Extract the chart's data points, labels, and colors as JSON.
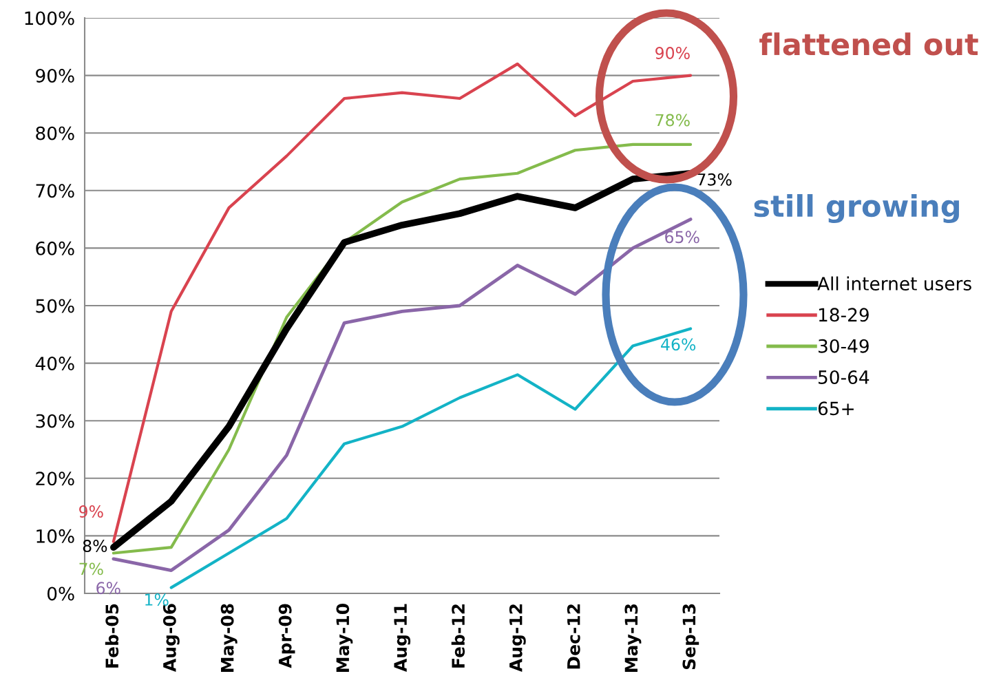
{
  "chart_data": {
    "type": "line",
    "categories": [
      "Feb-05",
      "Aug-06",
      "May-08",
      "Apr-09",
      "May-10",
      "Aug-11",
      "Feb-12",
      "Aug-12",
      "Dec-12",
      "May-13",
      "Sep-13"
    ],
    "series": [
      {
        "name": "All internet users",
        "color": "#000000",
        "values": [
          8,
          16,
          29,
          46,
          61,
          64,
          66,
          69,
          67,
          72,
          73
        ],
        "value_labels": [
          "8%",
          null,
          null,
          null,
          null,
          null,
          null,
          null,
          null,
          null,
          "73%"
        ]
      },
      {
        "name": "18-29",
        "color": "#d9434f",
        "values": [
          9,
          49,
          67,
          76,
          86,
          87,
          86,
          92,
          83,
          89,
          90
        ],
        "value_labels": [
          "9%",
          null,
          null,
          null,
          null,
          null,
          null,
          null,
          null,
          null,
          "90%"
        ]
      },
      {
        "name": "30-49",
        "color": "#84bb4c",
        "values": [
          7,
          8,
          25,
          48,
          61,
          68,
          72,
          73,
          77,
          78,
          78
        ],
        "value_labels": [
          "7%",
          null,
          null,
          null,
          null,
          null,
          null,
          null,
          null,
          null,
          "78%"
        ]
      },
      {
        "name": "50-64",
        "color": "#8a66a8",
        "values": [
          6,
          4,
          11,
          24,
          47,
          49,
          50,
          57,
          52,
          60,
          65
        ],
        "value_labels": [
          "6%",
          null,
          null,
          null,
          null,
          null,
          null,
          null,
          null,
          null,
          "65%"
        ]
      },
      {
        "name": "65+",
        "color": "#13b3c6",
        "values": [
          null,
          1,
          7,
          13,
          26,
          29,
          34,
          38,
          32,
          43,
          46
        ],
        "value_labels": [
          null,
          "1%",
          null,
          null,
          null,
          null,
          null,
          null,
          null,
          null,
          "46%"
        ]
      }
    ],
    "ylim": [
      0,
      100
    ],
    "yticks": [
      {
        "value": 0,
        "label": "0%"
      },
      {
        "value": 10,
        "label": "10%"
      },
      {
        "value": 20,
        "label": "20%"
      },
      {
        "value": 30,
        "label": "30%"
      },
      {
        "value": 40,
        "label": "40%"
      },
      {
        "value": 50,
        "label": "50%"
      },
      {
        "value": 60,
        "label": "60%"
      },
      {
        "value": 70,
        "label": "70%"
      },
      {
        "value": 80,
        "label": "80%"
      },
      {
        "value": 90,
        "label": "90%"
      },
      {
        "value": 100,
        "label": "100%"
      }
    ],
    "grid": "y",
    "legend": "right",
    "marker": "none",
    "line_style": "solid",
    "annotations": [
      "flattened out",
      "still growing"
    ]
  }
}
